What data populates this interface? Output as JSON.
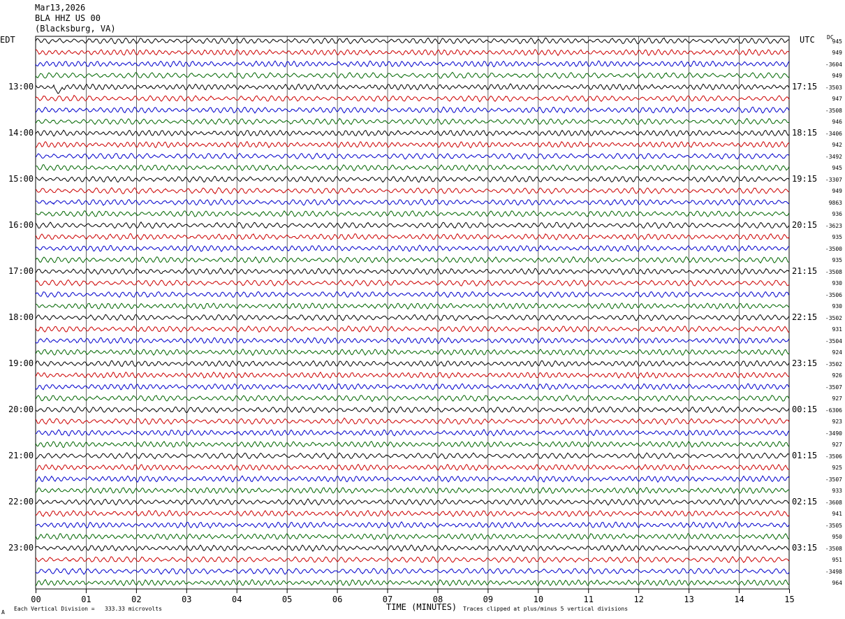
{
  "header": {
    "date": "Mar13,2026",
    "station": "BLA HHZ US 00",
    "location": "(Blacksburg, VA)"
  },
  "left_timezone": "EDT",
  "right_timezone": "UTC",
  "dc_header": "DC",
  "footer": {
    "scale_label": "Each Vertical Division =",
    "scale_value": "333.33 microvolts",
    "clip_note": "Traces clipped at plus/minus 5 vertical divisions",
    "corner_mark": "A"
  },
  "chart_data": {
    "type": "line",
    "title": "",
    "xlabel": "TIME (MINUTES)",
    "ylabel": "",
    "x_range": [
      0,
      15
    ],
    "x_ticks": [
      "00",
      "01",
      "02",
      "03",
      "04",
      "05",
      "06",
      "07",
      "08",
      "09",
      "10",
      "11",
      "12",
      "13",
      "14",
      "15"
    ],
    "traces_per_hour": 4,
    "trace_minutes": 15,
    "trace_colors": [
      "#000000",
      "#cc0000",
      "#0000cc",
      "#006600"
    ],
    "left_hour_labels": [
      "13:00",
      "14:00",
      "15:00",
      "16:00",
      "17:00",
      "18:00",
      "19:00",
      "20:00",
      "21:00",
      "22:00",
      "23:00"
    ],
    "right_hour_labels": [
      "17:15",
      "18:15",
      "19:15",
      "20:15",
      "21:15",
      "22:15",
      "23:15",
      "00:15",
      "01:15",
      "02:15",
      "03:15"
    ],
    "dc_offsets": [
      "945",
      "949",
      "-3604",
      "949",
      "-3503",
      "947",
      "-3508",
      "946",
      "-3406",
      "942",
      "-3492",
      "945",
      "-3307",
      "949",
      "9863",
      "936",
      "-3623",
      "935",
      "-3500",
      "935",
      "-3508",
      "930",
      "-3506",
      "930",
      "-3502",
      "931",
      "-3504",
      "924",
      "-3502",
      "926",
      "-3507",
      "927",
      "-6306",
      "923",
      "-3490",
      "927",
      "-3506",
      "925",
      "-3507",
      "933",
      "-3608",
      "941",
      "-3505",
      "950",
      "-3508",
      "951",
      "-3498",
      "964"
    ],
    "annotations": [
      {
        "label": "event spike",
        "trace_index": 4,
        "minute": 0.45
      }
    ]
  }
}
